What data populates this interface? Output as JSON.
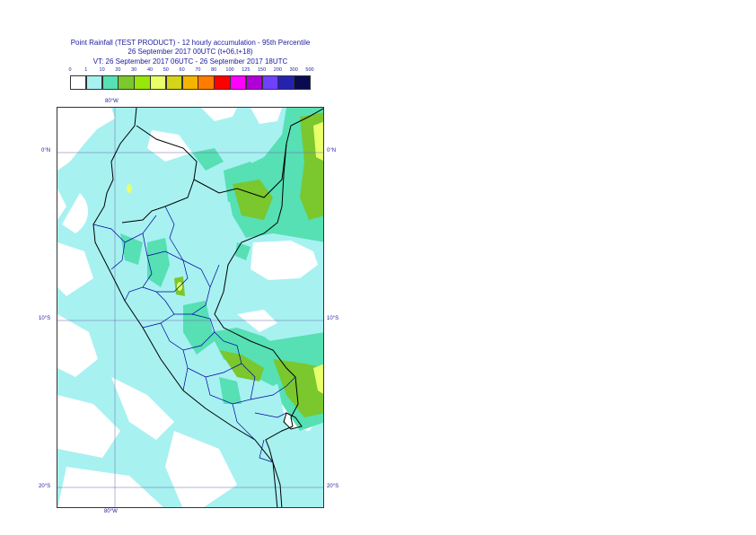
{
  "title": {
    "line1": "Point Rainfall (TEST PRODUCT) - 12 hourly accumulation - 95th Percentile",
    "line2": "26 September 2017 00UTC (t+06,t+18)",
    "line3": "VT: 26 September 2017 06UTC - 26 September 2017 18UTC"
  },
  "legend": {
    "thresholds": [
      "0",
      "1",
      "10",
      "20",
      "30",
      "40",
      "50",
      "60",
      "70",
      "80",
      "100",
      "125",
      "150",
      "200",
      "300",
      "500"
    ],
    "colors": [
      "#ffffff",
      "#a7f1f1",
      "#56e0b4",
      "#7ac72e",
      "#98e60a",
      "#e8ff6a",
      "#d4d41a",
      "#f5b400",
      "#ff7c00",
      "#ff0000",
      "#ff00ff",
      "#b000d8",
      "#7040ff",
      "#2323b0",
      "#0a0a50"
    ]
  },
  "axes": {
    "top_lon": "80°W",
    "bottom_lon": "80°W",
    "lat_labels": [
      "0°N",
      "10°S",
      "20°S"
    ]
  },
  "colors": {
    "background": "#ffffff",
    "ocean_rain": "#a7f1f1",
    "rain_10": "#56e0b4",
    "rain_20": "#7ac72e",
    "rain_40": "#e8ff6a",
    "coast": "#000000",
    "borders": "#0000a0"
  }
}
